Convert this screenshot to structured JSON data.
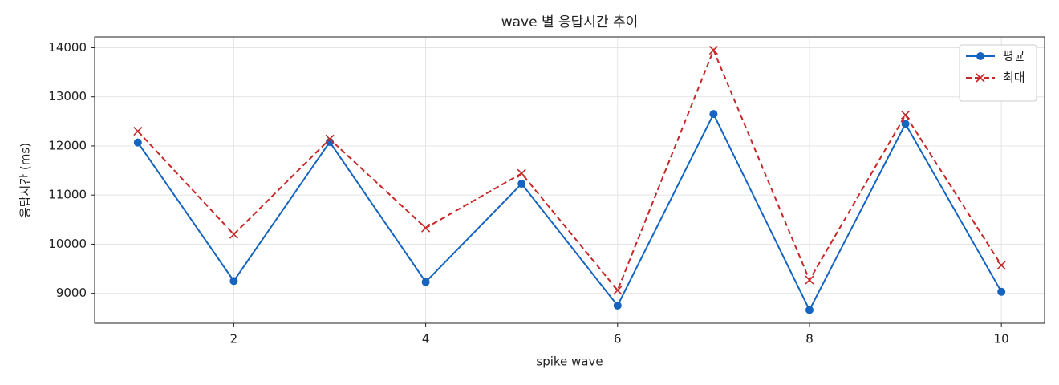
{
  "chart_data": {
    "type": "line",
    "title": "wave 별 응답시간 추이",
    "x_label": "spike wave",
    "y_label": "응답시간 (ms)",
    "x": [
      1,
      2,
      3,
      4,
      5,
      6,
      7,
      8,
      9,
      10
    ],
    "series": [
      {
        "name": "평균",
        "color": "#1565c0",
        "marker": "o",
        "linestyle": "solid",
        "values": [
          12070,
          9250,
          12080,
          9230,
          11230,
          8750,
          12650,
          8660,
          12450,
          9030
        ]
      },
      {
        "name": "최대",
        "color": "#c62828",
        "marker": "x",
        "linestyle": "dashed",
        "values": [
          12300,
          10200,
          12140,
          10330,
          11440,
          9060,
          13950,
          9270,
          12630,
          9570
        ]
      }
    ],
    "xlim": [
      0.55,
      10.45
    ],
    "xticks": [
      2,
      4,
      6,
      8,
      10
    ],
    "ylim": [
      8390,
      14220
    ],
    "yticks": [
      9000,
      10000,
      11000,
      12000,
      13000,
      14000
    ],
    "grid": true,
    "legend": "upper right"
  }
}
